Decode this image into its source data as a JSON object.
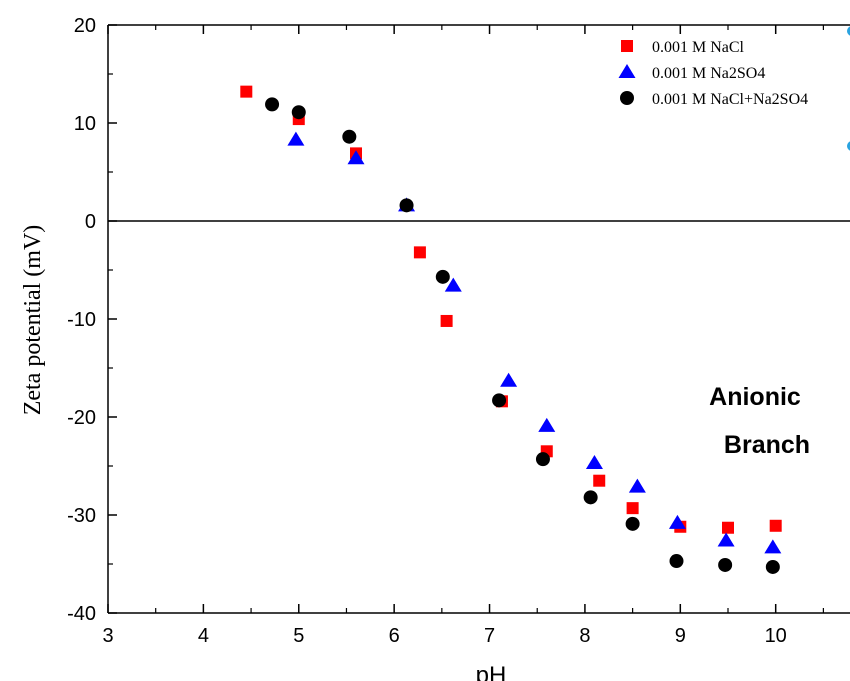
{
  "chart_data": {
    "type": "scatter",
    "title": "",
    "xlabel": "pH",
    "ylabel": "Zeta potential (mV)",
    "xlim": [
      3,
      10.8
    ],
    "ylim": [
      -40,
      20
    ],
    "x_ticks": [
      "3",
      "4",
      "5",
      "6",
      "7",
      "8",
      "9",
      "10"
    ],
    "y_ticks": [
      "20",
      "10",
      "0",
      "-10",
      "-20",
      "-30",
      "-40"
    ],
    "legend_position": "top-right",
    "zero_line": true,
    "series": [
      {
        "name": "0.001 M NaCl",
        "marker": "square",
        "color": "#ff0000",
        "points": [
          [
            4.45,
            13.2
          ],
          [
            5.0,
            10.4
          ],
          [
            5.6,
            6.9
          ],
          [
            6.27,
            -3.2
          ],
          [
            6.55,
            -10.2
          ],
          [
            7.13,
            -18.4
          ],
          [
            7.6,
            -23.5
          ],
          [
            8.15,
            -26.5
          ],
          [
            8.5,
            -29.3
          ],
          [
            9.0,
            -31.2
          ],
          [
            9.5,
            -31.3
          ],
          [
            10.0,
            -31.1
          ]
        ]
      },
      {
        "name": "0.001 M Na2SO4",
        "marker": "triangle",
        "color": "#0000ff",
        "points": [
          [
            4.97,
            8.3
          ],
          [
            5.6,
            6.4
          ],
          [
            6.13,
            1.6
          ],
          [
            6.62,
            -6.6
          ],
          [
            7.2,
            -16.3
          ],
          [
            7.6,
            -20.9
          ],
          [
            8.1,
            -24.7
          ],
          [
            8.55,
            -27.1
          ],
          [
            8.97,
            -30.8
          ],
          [
            9.48,
            -32.6
          ],
          [
            9.97,
            -33.3
          ]
        ]
      },
      {
        "name": "0.001 M NaCl+Na2SO4",
        "marker": "circle",
        "color": "#000000",
        "points": [
          [
            4.72,
            11.9
          ],
          [
            5.0,
            11.1
          ],
          [
            5.53,
            8.6
          ],
          [
            6.13,
            1.6
          ],
          [
            6.51,
            -5.7
          ],
          [
            7.1,
            -18.3
          ],
          [
            7.56,
            -24.3
          ],
          [
            8.06,
            -28.2
          ],
          [
            8.5,
            -30.9
          ],
          [
            8.96,
            -34.7
          ],
          [
            9.47,
            -35.1
          ],
          [
            9.97,
            -35.3
          ]
        ]
      }
    ],
    "annotations": [
      "Anionic",
      "Branch"
    ]
  }
}
